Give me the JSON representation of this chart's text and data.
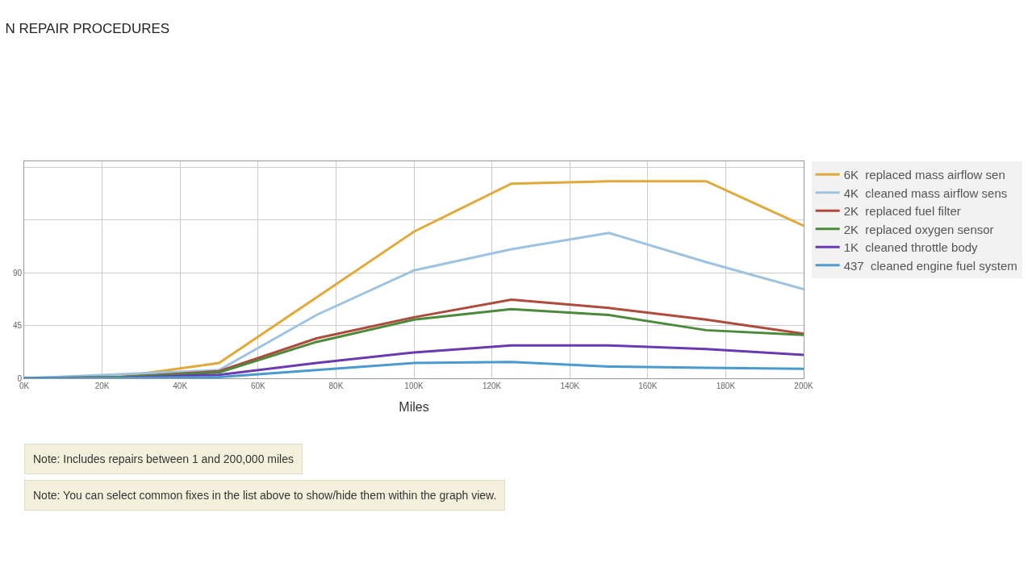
{
  "chart_data": {
    "type": "line",
    "title": "N REPAIR PROCEDURES",
    "xlabel": "Miles",
    "x": [
      0,
      25000,
      50000,
      75000,
      100000,
      125000,
      150000,
      175000,
      200000
    ],
    "series": [
      {
        "name": "6K  replaced mass airflow sen",
        "color": "#e0a93a",
        "values": [
          0,
          1.5,
          13,
          69,
          125,
          166,
          168,
          168,
          130
        ]
      },
      {
        "name": "4K  cleaned mass airflow sens",
        "color": "#9dc3e0",
        "values": [
          0,
          null,
          7,
          54,
          92,
          110,
          124,
          99,
          76
        ]
      },
      {
        "name": "2K  replaced fuel filter",
        "color": "#b04a3a",
        "values": [
          0,
          1,
          6,
          34,
          52,
          67,
          60,
          50,
          38
        ]
      },
      {
        "name": "2K  replaced oxygen sensor",
        "color": "#4a8a3a",
        "values": [
          0,
          1,
          5,
          31,
          50,
          59,
          54,
          41,
          37
        ]
      },
      {
        "name": "1K  cleaned throttle body",
        "color": "#6a3ab0",
        "values": [
          0,
          0.5,
          3,
          13,
          22,
          28,
          28,
          25,
          20
        ]
      },
      {
        "name": "437  cleaned engine fuel system",
        "color": "#4a9ad0",
        "values": [
          0,
          0.3,
          1,
          7,
          13,
          14,
          10,
          9,
          8
        ]
      }
    ],
    "xlim": [
      0,
      200000
    ],
    "xticks": [
      {
        "value": 0,
        "label": "0K"
      },
      {
        "value": 20000,
        "label": "20K"
      },
      {
        "value": 40000,
        "label": "40K"
      },
      {
        "value": 60000,
        "label": "60K"
      },
      {
        "value": 80000,
        "label": "80K"
      },
      {
        "value": 100000,
        "label": "100K"
      },
      {
        "value": 120000,
        "label": "120K"
      },
      {
        "value": 140000,
        "label": "140K"
      },
      {
        "value": 160000,
        "label": "160K"
      },
      {
        "value": 180000,
        "label": "180K"
      },
      {
        "value": 200000,
        "label": "200K"
      }
    ],
    "ylim": [
      0,
      185
    ],
    "yticks": [
      0,
      45,
      90,
      {
        "value": 135,
        "label": null
      },
      {
        "value": 180,
        "label": null
      }
    ],
    "grid": true,
    "legend": "right",
    "marker": "none",
    "line_style": "solid",
    "annotations": [
      "Note: Includes repairs between 1 and 200,000 miles",
      "Note: You can select common fixes in the list above to show/hide them within the graph view."
    ]
  }
}
